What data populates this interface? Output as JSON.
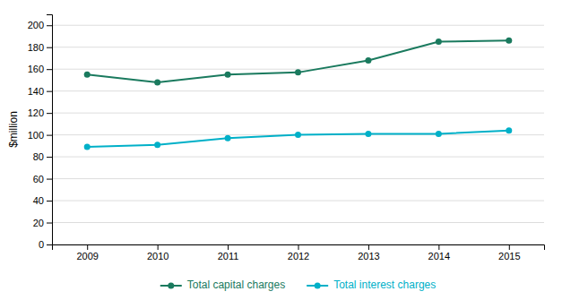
{
  "chart_data": {
    "type": "line",
    "ylabel": "$million",
    "x": [
      2009,
      2010,
      2011,
      2012,
      2013,
      2014,
      2015
    ],
    "xlim": [
      2008.5,
      2015.5
    ],
    "xticks": [
      2009,
      2010,
      2011,
      2012,
      2013,
      2014,
      2015
    ],
    "ylim": [
      0,
      210
    ],
    "yticks": [
      0,
      20,
      40,
      60,
      80,
      100,
      120,
      140,
      160,
      180,
      200
    ],
    "grid": true,
    "legend": "bottom",
    "marker": "circle",
    "series": [
      {
        "name": "Total capital charges",
        "color": "#1a7a5e",
        "values": [
          155,
          148,
          155,
          157,
          168,
          185,
          186
        ]
      },
      {
        "name": "Total interest charges",
        "color": "#00b0c8",
        "values": [
          89,
          91,
          97,
          100,
          101,
          101,
          104
        ]
      }
    ]
  }
}
